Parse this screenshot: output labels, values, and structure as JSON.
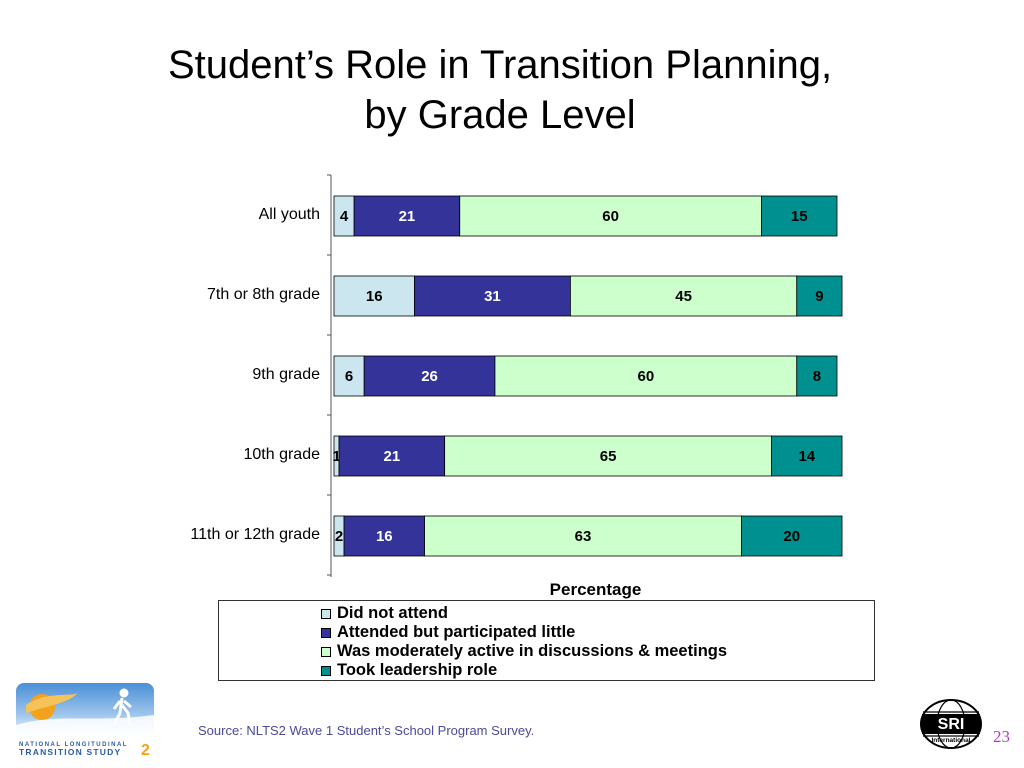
{
  "title": {
    "line1": "Student’s Role in Transition Planning,",
    "line2": "by Grade Level"
  },
  "chart_data": {
    "type": "bar",
    "orientation": "horizontal",
    "stacked": true,
    "xlabel": "Percentage",
    "ylabel": "",
    "xlim": [
      0,
      100
    ],
    "categories": [
      "All youth",
      "7th or 8th grade",
      "9th grade",
      "10th grade",
      "11th or 12th grade"
    ],
    "series": [
      {
        "name": "Did not attend",
        "color": "#cce6ef",
        "values": [
          4,
          16,
          6,
          1,
          2
        ]
      },
      {
        "name": "Attended but participated little",
        "color": "#333399",
        "values": [
          21,
          31,
          26,
          21,
          16
        ]
      },
      {
        "name": "Was moderately active in discussions & meetings",
        "color": "#ccffcc",
        "values": [
          60,
          45,
          60,
          65,
          63
        ]
      },
      {
        "name": "Took leadership role",
        "color": "#009090",
        "values": [
          15,
          9,
          8,
          14,
          20
        ]
      }
    ],
    "legend_position": "bottom",
    "grid": false
  },
  "source": "Source: NLTS2 Wave 1 Student’s School Program Survey.",
  "page_number": "23",
  "logos": {
    "nlts_line1": "NATIONAL LONGITUDINAL",
    "nlts_line2": "TRANSITION STUDY",
    "nlts_number": "2",
    "sri_text": "SRI",
    "sri_subtext": "International"
  }
}
